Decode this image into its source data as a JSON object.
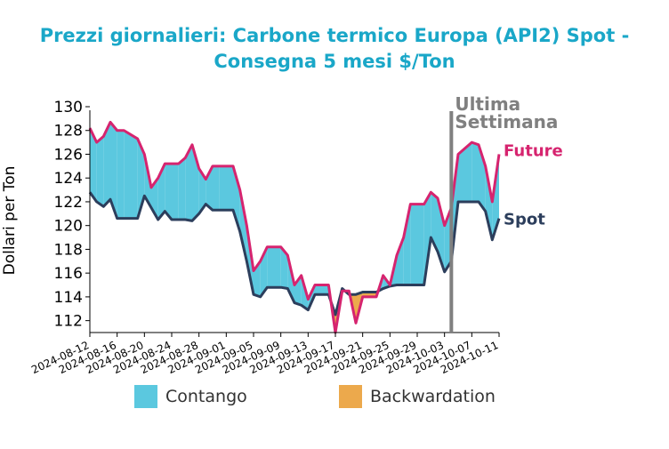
{
  "title_line1": "Prezzi giornalieri: Carbone termico Europa (API2) Spot -",
  "title_line2": "Consegna 5 mesi $/Ton",
  "colors": {
    "title": "#1aa7c8",
    "contango": "#5bc8df",
    "backwardation": "#eca94c",
    "future": "#d6246f",
    "spot": "#2c3e5c",
    "marker": "#808080"
  },
  "legend": {
    "contango": "Contango",
    "backwardation": "Backwardation"
  },
  "chart_data": {
    "type": "area",
    "title": "Prezzi giornalieri: Carbone termico Europa (API2) Spot - Consegna 5 mesi $/Ton",
    "ylabel": "Dollari per Ton",
    "ylim": [
      111,
      130
    ],
    "yticks": [
      112,
      114,
      116,
      118,
      120,
      122,
      124,
      126,
      128,
      130
    ],
    "xticks": [
      "2024-08-12",
      "2024-08-16",
      "2024-08-20",
      "2024-08-24",
      "2024-08-28",
      "2024-09-01",
      "2024-09-05",
      "2024-09-09",
      "2024-09-13",
      "2024-09-17",
      "2024-09-21",
      "2024-09-25",
      "2024-09-29",
      "2024-10-03",
      "2024-10-07",
      "2024-10-11"
    ],
    "xrange": [
      "2024-08-12",
      "2024-10-11"
    ],
    "x": [
      "2024-08-12",
      "2024-08-13",
      "2024-08-14",
      "2024-08-15",
      "2024-08-16",
      "2024-08-17",
      "2024-08-19",
      "2024-08-20",
      "2024-08-21",
      "2024-08-22",
      "2024-08-23",
      "2024-08-24",
      "2024-08-25",
      "2024-08-26",
      "2024-08-27",
      "2024-08-28",
      "2024-08-29",
      "2024-08-30",
      "2024-08-31",
      "2024-09-02",
      "2024-09-03",
      "2024-09-04",
      "2024-09-05",
      "2024-09-06",
      "2024-09-07",
      "2024-09-09",
      "2024-09-10",
      "2024-09-11",
      "2024-09-12",
      "2024-09-13",
      "2024-09-14",
      "2024-09-16",
      "2024-09-17",
      "2024-09-18",
      "2024-09-19",
      "2024-09-20",
      "2024-09-21",
      "2024-09-23",
      "2024-09-24",
      "2024-09-25",
      "2024-09-26",
      "2024-09-27",
      "2024-09-28",
      "2024-09-30",
      "2024-10-01",
      "2024-10-02",
      "2024-10-03",
      "2024-10-04",
      "2024-10-05",
      "2024-10-07",
      "2024-10-08",
      "2024-10-09",
      "2024-10-10",
      "2024-10-11"
    ],
    "series": [
      {
        "name": "Future",
        "values": [
          128.2,
          127.0,
          127.5,
          128.7,
          128.0,
          128.0,
          127.3,
          126.0,
          123.2,
          124.0,
          125.2,
          125.2,
          125.2,
          125.7,
          126.8,
          124.8,
          123.9,
          125.0,
          125.0,
          125.0,
          123.0,
          120.0,
          116.2,
          117.0,
          118.2,
          118.2,
          117.5,
          115.0,
          115.8,
          113.8,
          115.0,
          115.0,
          111.0,
          114.5,
          114.5,
          111.8,
          114.0,
          114.0,
          115.8,
          115.0,
          117.5,
          119.0,
          121.8,
          121.8,
          122.8,
          122.3,
          120.0,
          121.5,
          126.0,
          127.0,
          126.8,
          125.0,
          122.0,
          126.0
        ]
      },
      {
        "name": "Spot",
        "values": [
          122.8,
          122.0,
          121.6,
          122.2,
          120.6,
          120.6,
          120.6,
          122.5,
          121.5,
          120.5,
          121.2,
          120.5,
          120.5,
          120.5,
          120.4,
          121.0,
          121.8,
          121.3,
          121.3,
          121.3,
          119.5,
          117.0,
          114.2,
          114.0,
          114.8,
          114.8,
          114.7,
          113.5,
          113.3,
          112.9,
          114.2,
          114.2,
          112.5,
          114.7,
          114.2,
          114.2,
          114.4,
          114.4,
          114.7,
          114.9,
          115.0,
          115.0,
          115.0,
          115.0,
          119.0,
          117.8,
          116.1,
          117.0,
          122.0,
          122.0,
          122.0,
          121.2,
          118.8,
          120.6
        ]
      }
    ],
    "annotations": {
      "marker_date": "2024-10-04",
      "marker_label_line1": "Ultima",
      "marker_label_line2": "Settimana",
      "future_label": "Future",
      "spot_label": "Spot"
    },
    "legend": [
      "Contango",
      "Backwardation"
    ],
    "legend_position": "bottom",
    "grid": false
  }
}
